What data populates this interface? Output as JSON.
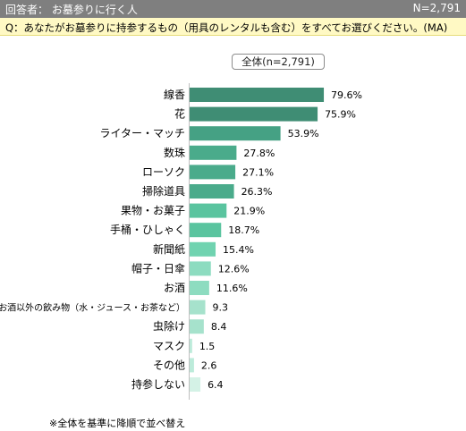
{
  "header": {
    "respondent_label": "回答者： お墓参りに行く人",
    "sample_size": "N=2,791"
  },
  "question": "Q：あなたがお墓参りに持参するもの（用具のレンタルも含む）をすべてお選びください。(MA)",
  "footnote": "※全体を基準に降順で並べ替え",
  "chart_data": {
    "type": "bar",
    "orientation": "horizontal",
    "series": [
      {
        "name": "全体(n=2,791)",
        "values": [
          79.6,
          75.9,
          53.9,
          27.8,
          27.1,
          26.3,
          21.9,
          18.7,
          15.4,
          12.6,
          11.6,
          9.3,
          8.4,
          1.5,
          2.6,
          6.4
        ],
        "value_labels": [
          "79.6%",
          "75.9%",
          "53.9%",
          "27.8%",
          "27.1%",
          "26.3%",
          "21.9%",
          "18.7%",
          "15.4%",
          "12.6%",
          "11.6%",
          "9.3",
          "8.4",
          "1.5",
          "2.6",
          "6.4"
        ]
      }
    ],
    "categories": [
      "線香",
      "花",
      "ライター・マッチ",
      "数珠",
      "ローソク",
      "掃除道具",
      "果物・お菓子",
      "手桶・ひしゃく",
      "新聞紙",
      "帽子・日傘",
      "お酒",
      "お酒以外の飲み物（水・ジュース・お茶など）",
      "虫除け",
      "マスク",
      "その他",
      "持参しない"
    ],
    "bar_colors": [
      "#3f8d74",
      "#3f8d74",
      "#45a184",
      "#4aab8b",
      "#4aab8b",
      "#4aab8b",
      "#5ac49f",
      "#5ac49f",
      "#70d3b0",
      "#8ddcc0",
      "#8ddcc0",
      "#a6e2cc",
      "#a6e2cc",
      "#bcebda",
      "#bcebda",
      "#d4f2e6"
    ],
    "xlim": [
      0,
      100
    ],
    "grid": false,
    "legend": "top"
  }
}
